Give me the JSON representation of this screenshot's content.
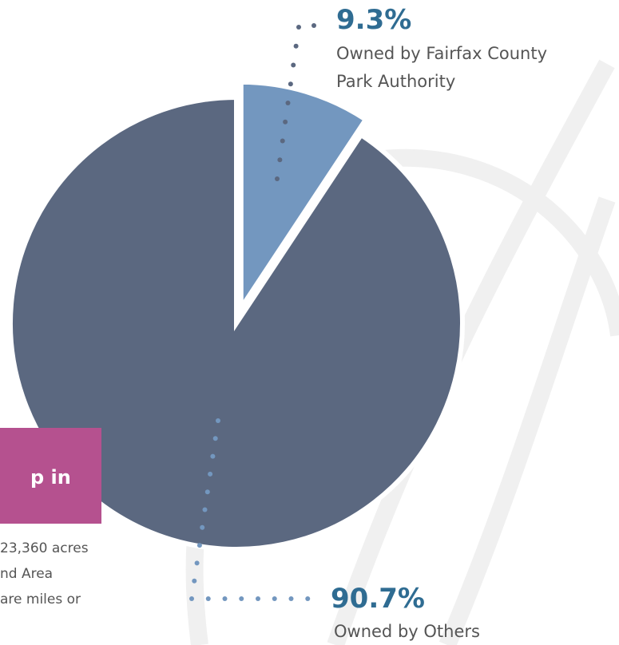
{
  "chart_data": {
    "type": "pie",
    "categories": [
      "Owned by Fairfax County Park Authority",
      "Owned by Others"
    ],
    "values": [
      9.3,
      90.7
    ],
    "value_labels": [
      "9.3%",
      "90.7%"
    ],
    "colors": [
      "#7397bf",
      "#5b6880"
    ]
  },
  "side_panel": {
    "box_title": "p in",
    "lines": [
      "23,360 acres",
      "nd Area",
      "are miles or"
    ]
  }
}
